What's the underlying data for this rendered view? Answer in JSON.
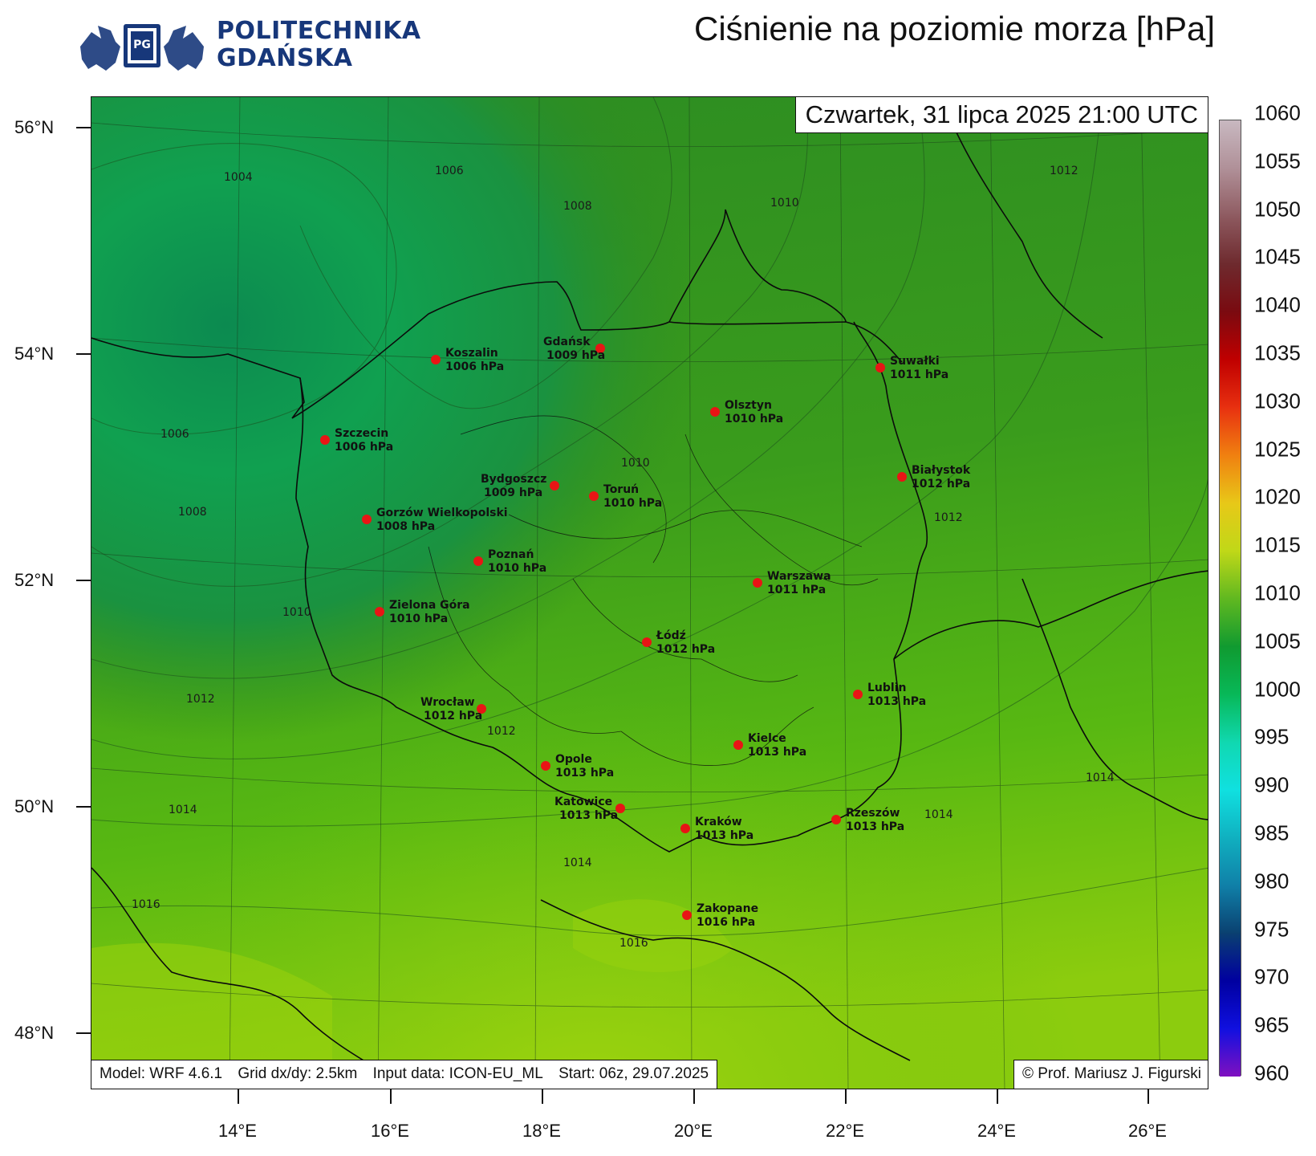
{
  "header": {
    "logo_line1": "POLITECHNIKA",
    "logo_line2": "GDAŃSKA",
    "logo_emblem_letters": "PG",
    "title": "Ciśnienie na poziomie morza [hPa]"
  },
  "map": {
    "date": "Czwartek, 31 lipca 2025 21:00 UTC",
    "footer": {
      "model": "Model: WRF 4.6.1",
      "grid": "Grid dx/dy: 2.5km",
      "input": "Input data: ICON-EU_ML",
      "start": "Start: 06z, 29.07.2025"
    },
    "copyright": "© Prof. Mariusz J. Figurski",
    "lat_labels": [
      "56°N",
      "54°N",
      "52°N",
      "50°N",
      "48°N"
    ],
    "lon_labels": [
      "14°E",
      "16°E",
      "18°E",
      "20°E",
      "22°E",
      "24°E",
      "26°E"
    ],
    "cities": [
      {
        "name": "Koszalin",
        "value": "1006 hPa"
      },
      {
        "name": "Gdańsk",
        "value": "1009 hPa"
      },
      {
        "name": "Suwałki",
        "value": "1011 hPa"
      },
      {
        "name": "Olsztyn",
        "value": "1010 hPa"
      },
      {
        "name": "Szczecin",
        "value": "1006 hPa"
      },
      {
        "name": "Białystok",
        "value": "1012 hPa"
      },
      {
        "name": "Bydgoszcz",
        "value": "1009 hPa"
      },
      {
        "name": "Toruń",
        "value": "1010 hPa"
      },
      {
        "name": "Gorzów Wielkopolski",
        "value": "1008 hPa"
      },
      {
        "name": "Poznań",
        "value": "1010 hPa"
      },
      {
        "name": "Warszawa",
        "value": "1011 hPa"
      },
      {
        "name": "Zielona Góra",
        "value": "1010 hPa"
      },
      {
        "name": "Łódź",
        "value": "1012 hPa"
      },
      {
        "name": "Lublin",
        "value": "1013 hPa"
      },
      {
        "name": "Wrocław",
        "value": "1012 hPa"
      },
      {
        "name": "Kielce",
        "value": "1013 hPa"
      },
      {
        "name": "Opole",
        "value": "1013 hPa"
      },
      {
        "name": "Katowice",
        "value": "1013 hPa"
      },
      {
        "name": "Kraków",
        "value": "1013 hPa"
      },
      {
        "name": "Rzeszów",
        "value": "1013 hPa"
      },
      {
        "name": "Zakopane",
        "value": "1016 hPa"
      }
    ],
    "isobar_labels": [
      "1004",
      "1006",
      "1008",
      "1010",
      "1012",
      "1006",
      "1008",
      "1010",
      "1010",
      "1012",
      "1012",
      "1012",
      "1014",
      "1014",
      "1014",
      "1014",
      "1016",
      "1016"
    ]
  },
  "colorbar": {
    "labels": [
      "1060",
      "1055",
      "1050",
      "1045",
      "1040",
      "1035",
      "1030",
      "1025",
      "1020",
      "1015",
      "1010",
      "1005",
      "1000",
      "995",
      "990",
      "985",
      "980",
      "975",
      "970",
      "965",
      "960"
    ],
    "stops": [
      "#c8b8c0",
      "#b09098",
      "#8e5a60",
      "#6e2a2e",
      "#7a0a10",
      "#c00000",
      "#e83010",
      "#f08010",
      "#e8c818",
      "#c0d818",
      "#60b820",
      "#109a30",
      "#08b858",
      "#10d8b0",
      "#10e0e0",
      "#10b0c0",
      "#1080a8",
      "#0a4070",
      "#0000a0",
      "#1010e0",
      "#8010c0"
    ],
    "colors": {
      "land_green_dark": "#2f8a1e",
      "land_green_mid": "#3fa01a",
      "land_green_light": "#72c40c",
      "land_yellow_green": "#a8d810",
      "sea_green": "#10a050",
      "sea_dark": "#0d8a4a",
      "city_dot": "#e81515"
    }
  }
}
